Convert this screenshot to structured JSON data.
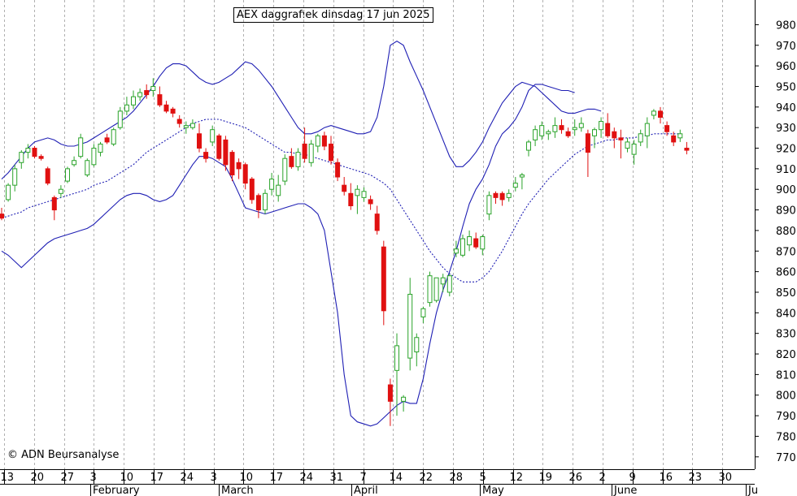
{
  "chart_data": {
    "type": "candlestick",
    "title": "AEX daggrafiek dinsdag 17 jun 2025",
    "credit": "© ADN Beursanalyse",
    "ylim": [
      764,
      992
    ],
    "y_ticks": [
      770,
      780,
      790,
      800,
      810,
      820,
      830,
      840,
      850,
      860,
      870,
      880,
      890,
      900,
      910,
      920,
      930,
      940,
      950,
      960,
      970,
      980
    ],
    "x_tick_labels": [
      "13",
      "20",
      "27",
      "3",
      "10",
      "17",
      "24",
      "3",
      "10",
      "17",
      "24",
      "31",
      "7",
      "14",
      "22",
      "28",
      "5",
      "12",
      "19",
      "26",
      "2",
      "9",
      "16",
      "23",
      "30"
    ],
    "month_labels": [
      "February",
      "March",
      "April",
      "May",
      "June",
      "Ju"
    ],
    "series": [
      {
        "name": "",
        "kind": "ohlc",
        "values": [
          [
            888,
            891,
            885,
            886
          ],
          [
            895,
            903,
            894,
            902
          ],
          [
            902,
            912,
            899,
            910
          ],
          [
            913,
            919,
            910,
            918
          ],
          [
            918,
            922,
            915,
            920
          ],
          [
            920,
            921,
            915,
            916
          ],
          [
            916,
            917,
            914,
            915
          ],
          [
            910,
            911,
            902,
            903
          ],
          [
            896,
            897,
            885,
            890
          ],
          [
            898,
            902,
            896,
            900
          ],
          [
            904,
            911,
            903,
            910
          ],
          [
            912,
            916,
            911,
            914
          ],
          [
            916,
            927,
            915,
            925
          ],
          [
            907,
            915,
            906,
            914
          ],
          [
            912,
            922,
            911,
            920
          ],
          [
            918,
            923,
            916,
            922
          ],
          [
            925,
            927,
            922,
            923
          ],
          [
            922,
            930,
            921,
            929
          ],
          [
            930,
            940,
            929,
            938
          ],
          [
            938,
            945,
            936,
            941
          ],
          [
            941,
            948,
            939,
            945
          ],
          [
            945,
            949,
            943,
            947
          ],
          [
            948,
            951,
            944,
            946
          ],
          [
            948,
            954,
            945,
            950
          ],
          [
            946,
            950,
            940,
            941
          ],
          [
            941,
            943,
            937,
            938
          ],
          [
            939,
            940,
            935,
            937
          ],
          [
            934,
            936,
            930,
            932
          ],
          [
            930,
            933,
            927,
            931
          ],
          [
            930,
            934,
            929,
            932
          ],
          [
            927,
            932,
            918,
            920
          ],
          [
            918,
            920,
            913,
            915
          ],
          [
            923,
            931,
            921,
            929
          ],
          [
            926,
            927,
            914,
            915
          ],
          [
            924,
            926,
            909,
            912
          ],
          [
            918,
            919,
            904,
            907
          ],
          [
            913,
            915,
            905,
            910
          ],
          [
            912,
            913,
            900,
            903
          ],
          [
            905,
            906,
            893,
            895
          ],
          [
            897,
            898,
            886,
            890
          ],
          [
            890,
            900,
            888,
            898
          ],
          [
            900,
            908,
            897,
            905
          ],
          [
            897,
            907,
            894,
            902
          ],
          [
            904,
            917,
            902,
            915
          ],
          [
            916,
            920,
            910,
            911
          ],
          [
            911,
            920,
            909,
            918
          ],
          [
            922,
            930,
            913,
            915
          ],
          [
            913,
            924,
            911,
            922
          ],
          [
            921,
            927,
            918,
            926
          ],
          [
            926,
            928,
            919,
            921
          ],
          [
            922,
            926,
            912,
            914
          ],
          [
            913,
            915,
            904,
            906
          ],
          [
            902,
            906,
            897,
            899
          ],
          [
            898,
            903,
            890,
            892
          ],
          [
            897,
            902,
            888,
            900
          ],
          [
            896,
            901,
            894,
            899
          ],
          [
            895,
            897,
            890,
            893
          ],
          [
            888,
            892,
            878,
            880
          ],
          [
            872,
            875,
            834,
            841
          ],
          [
            805,
            808,
            785,
            797
          ],
          [
            812,
            830,
            790,
            824
          ],
          [
            797,
            800,
            792,
            799
          ],
          [
            818,
            857,
            812,
            849
          ],
          [
            821,
            830,
            814,
            828
          ],
          [
            838,
            843,
            835,
            842
          ],
          [
            845,
            860,
            843,
            858
          ],
          [
            846,
            857,
            845,
            857
          ],
          [
            854,
            859,
            850,
            857
          ],
          [
            850,
            859,
            848,
            858
          ],
          [
            869,
            875,
            867,
            871
          ],
          [
            868,
            878,
            867,
            876
          ],
          [
            873,
            880,
            870,
            877
          ],
          [
            876,
            879,
            871,
            872
          ],
          [
            871,
            878,
            868,
            877
          ],
          [
            888,
            899,
            885,
            897
          ],
          [
            898,
            899,
            893,
            896
          ],
          [
            898,
            899,
            892,
            895
          ],
          [
            896,
            900,
            894,
            898
          ],
          [
            901,
            906,
            899,
            903
          ],
          [
            906,
            908,
            900,
            907
          ],
          [
            919,
            924,
            916,
            923
          ],
          [
            924,
            931,
            921,
            929
          ],
          [
            926,
            933,
            924,
            931
          ],
          [
            927,
            929,
            924,
            928
          ],
          [
            928,
            935,
            925,
            931
          ],
          [
            931,
            934,
            927,
            929
          ],
          [
            928,
            930,
            925,
            926
          ],
          [
            929,
            934,
            926,
            930
          ],
          [
            930,
            935,
            928,
            932
          ],
          [
            927,
            929,
            906,
            918
          ],
          [
            926,
            930,
            920,
            929
          ],
          [
            929,
            935,
            925,
            933
          ],
          [
            932,
            937,
            925,
            926
          ],
          [
            928,
            930,
            920,
            925
          ],
          [
            925,
            929,
            915,
            924
          ],
          [
            920,
            925,
            918,
            923
          ],
          [
            917,
            924,
            912,
            922
          ],
          [
            923,
            929,
            921,
            927
          ],
          [
            926,
            935,
            920,
            932
          ],
          [
            936,
            939,
            934,
            938
          ],
          [
            938,
            940,
            932,
            935
          ],
          [
            931,
            933,
            926,
            928
          ],
          [
            926,
            928,
            921,
            923
          ],
          [
            925,
            929,
            923,
            927
          ],
          [
            920,
            923,
            917,
            919
          ]
        ]
      },
      {
        "name": "",
        "kind": "line",
        "style": "dotted",
        "values": [
          886,
          887,
          888,
          889,
          891,
          892,
          893,
          894,
          895,
          896,
          897,
          898,
          899,
          900,
          902,
          903,
          904,
          906,
          908,
          910,
          912,
          915,
          918,
          920,
          922,
          924,
          926,
          928,
          930,
          932,
          933,
          934,
          934,
          934,
          933,
          932,
          931,
          930,
          928,
          926,
          924,
          922,
          920,
          918,
          918,
          917,
          917,
          916,
          915,
          914,
          913,
          912,
          911,
          910,
          909,
          908,
          907,
          905,
          903,
          900,
          895,
          890,
          885,
          880,
          875,
          870,
          866,
          862,
          859,
          857,
          855,
          855,
          855,
          857,
          860,
          865,
          870,
          876,
          882,
          888,
          893,
          897,
          901,
          905,
          908,
          911,
          914,
          917,
          919,
          921,
          922,
          923,
          924,
          924,
          925,
          925,
          925,
          926,
          926,
          927,
          927,
          927,
          927,
          927
        ]
      },
      {
        "name": "",
        "kind": "line",
        "style": "solid",
        "values": [
          905,
          908,
          912,
          916,
          920,
          923,
          924,
          925,
          924,
          922,
          921,
          921,
          922,
          923,
          925,
          927,
          929,
          931,
          933,
          935,
          938,
          942,
          946,
          950,
          955,
          959,
          961,
          961,
          960,
          957,
          954,
          952,
          951,
          952,
          954,
          956,
          959,
          962,
          961,
          958,
          954,
          950,
          945,
          940,
          935,
          930,
          927,
          927,
          928,
          930,
          931,
          930,
          929,
          928,
          927,
          927,
          928,
          935,
          950,
          970,
          972,
          970,
          962,
          955,
          948,
          940,
          932,
          924,
          916,
          911,
          911,
          914,
          918,
          923,
          930,
          936,
          942,
          946,
          950,
          952,
          951,
          950,
          947,
          944,
          941,
          938,
          937,
          937,
          938,
          939,
          939,
          938
        ]
      },
      {
        "name": "",
        "kind": "line",
        "style": "solid",
        "values": [
          870,
          868,
          865,
          862,
          865,
          868,
          871,
          874,
          876,
          877,
          878,
          879,
          880,
          881,
          883,
          886,
          889,
          892,
          895,
          897,
          898,
          898,
          897,
          895,
          894,
          895,
          897,
          902,
          907,
          912,
          916,
          916,
          915,
          913,
          911,
          905,
          898,
          891,
          890,
          889,
          888,
          889,
          890,
          891,
          892,
          893,
          893,
          891,
          888,
          880,
          860,
          840,
          810,
          790,
          787,
          786,
          785,
          786,
          789,
          792,
          795,
          797,
          796,
          796,
          808,
          825,
          840,
          851,
          860,
          870,
          882,
          893,
          900,
          905,
          912,
          921,
          927,
          930,
          934,
          940,
          948,
          951,
          951,
          950,
          949,
          948,
          948,
          947
        ]
      }
    ]
  }
}
